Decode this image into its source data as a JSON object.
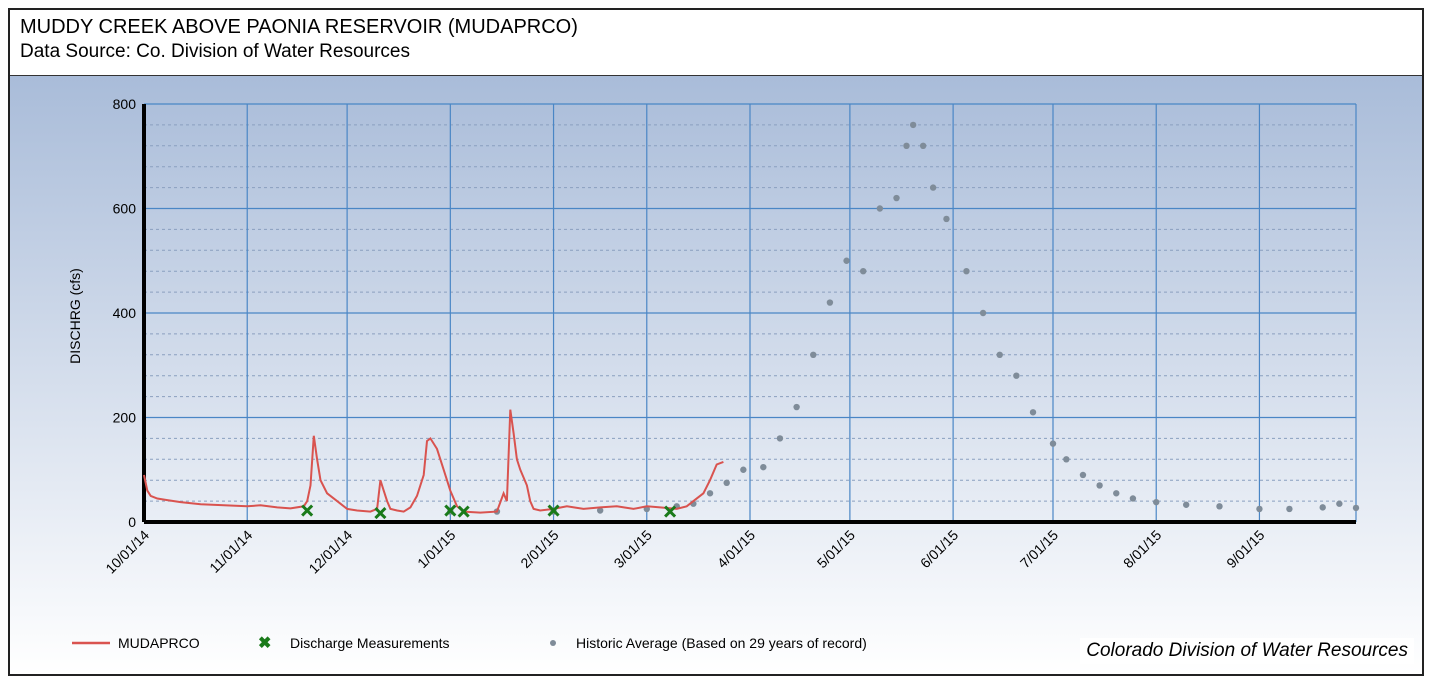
{
  "header": {
    "title": "MUDDY CREEK ABOVE PAONIA RESERVOIR (MUDAPRCO)",
    "subtitle": "Data Source: Co. Division of Water Resources"
  },
  "credit": "Colorado Division of Water Resources",
  "colors": {
    "gauge": "#d9534f",
    "measurement": "#1a7a1a",
    "historic": "#7f8c99",
    "grid": "#4a86c5",
    "background_top": "#a9bcd9",
    "background_bottom": "#ffffff"
  },
  "chart_data": {
    "type": "line",
    "ylabel": "DISCHRG (cfs)",
    "ylim": [
      0,
      800
    ],
    "yticks": [
      0,
      200,
      400,
      600,
      800
    ],
    "xlim": [
      "2014-10-01",
      "2015-09-30"
    ],
    "xticks": [
      {
        "date": "2014-10-01",
        "label": "10/01/14"
      },
      {
        "date": "2014-11-01",
        "label": "11/01/14"
      },
      {
        "date": "2014-12-01",
        "label": "12/01/14"
      },
      {
        "date": "2015-01-01",
        "label": "1/01/15"
      },
      {
        "date": "2015-02-01",
        "label": "2/01/15"
      },
      {
        "date": "2015-03-01",
        "label": "3/01/15"
      },
      {
        "date": "2015-04-01",
        "label": "4/01/15"
      },
      {
        "date": "2015-05-01",
        "label": "5/01/15"
      },
      {
        "date": "2015-06-01",
        "label": "6/01/15"
      },
      {
        "date": "2015-07-01",
        "label": "7/01/15"
      },
      {
        "date": "2015-08-01",
        "label": "8/01/15"
      },
      {
        "date": "2015-09-01",
        "label": "9/01/15"
      }
    ],
    "grid": true,
    "legend_position": "bottom",
    "series": [
      {
        "name": "MUDAPRCO",
        "style": "line",
        "x": [
          "2014-10-01",
          "2014-10-02",
          "2014-10-03",
          "2014-10-05",
          "2014-10-08",
          "2014-10-12",
          "2014-10-18",
          "2014-10-25",
          "2014-11-01",
          "2014-11-05",
          "2014-11-10",
          "2014-11-14",
          "2014-11-18",
          "2014-11-19",
          "2014-11-20",
          "2014-11-21",
          "2014-11-22",
          "2014-11-23",
          "2014-11-25",
          "2014-11-28",
          "2014-11-30",
          "2014-12-01",
          "2014-12-04",
          "2014-12-08",
          "2014-12-10",
          "2014-12-11",
          "2014-12-12",
          "2014-12-13",
          "2014-12-14",
          "2014-12-16",
          "2014-12-18",
          "2014-12-20",
          "2014-12-22",
          "2014-12-24",
          "2014-12-25",
          "2014-12-26",
          "2014-12-28",
          "2014-12-30",
          "2015-01-01",
          "2015-01-03",
          "2015-01-05",
          "2015-01-10",
          "2015-01-15",
          "2015-01-17",
          "2015-01-18",
          "2015-01-19",
          "2015-01-20",
          "2015-01-21",
          "2015-01-22",
          "2015-01-24",
          "2015-01-25",
          "2015-01-26",
          "2015-01-28",
          "2015-02-01",
          "2015-02-05",
          "2015-02-10",
          "2015-02-15",
          "2015-02-20",
          "2015-02-25",
          "2015-03-01",
          "2015-03-05",
          "2015-03-10",
          "2015-03-13",
          "2015-03-15",
          "2015-03-18",
          "2015-03-20",
          "2015-03-22",
          "2015-03-24"
        ],
        "values": [
          90,
          60,
          50,
          45,
          42,
          38,
          34,
          32,
          30,
          32,
          28,
          26,
          30,
          40,
          70,
          165,
          120,
          80,
          55,
          40,
          30,
          25,
          22,
          20,
          25,
          80,
          60,
          40,
          25,
          22,
          20,
          28,
          50,
          90,
          155,
          160,
          140,
          100,
          60,
          30,
          20,
          18,
          20,
          55,
          40,
          215,
          170,
          120,
          100,
          70,
          40,
          25,
          22,
          25,
          30,
          25,
          28,
          30,
          25,
          30,
          28,
          25,
          30,
          40,
          55,
          80,
          110,
          115
        ]
      },
      {
        "name": "Discharge Measurements",
        "style": "marker-x",
        "x": [
          "2014-11-19",
          "2014-12-11",
          "2015-01-01",
          "2015-01-05",
          "2015-02-01",
          "2015-03-08"
        ],
        "values": [
          22,
          17,
          22,
          20,
          22,
          20
        ]
      },
      {
        "name": "Historic Average (Based on 29 years of record)",
        "style": "marker-dot",
        "x": [
          "2015-01-01",
          "2015-01-15",
          "2015-02-01",
          "2015-02-15",
          "2015-03-01",
          "2015-03-10",
          "2015-03-15",
          "2015-03-20",
          "2015-03-25",
          "2015-03-30",
          "2015-04-05",
          "2015-04-10",
          "2015-04-15",
          "2015-04-20",
          "2015-04-25",
          "2015-04-30",
          "2015-05-05",
          "2015-05-10",
          "2015-05-15",
          "2015-05-18",
          "2015-05-20",
          "2015-05-23",
          "2015-05-26",
          "2015-05-30",
          "2015-06-05",
          "2015-06-10",
          "2015-06-15",
          "2015-06-20",
          "2015-06-25",
          "2015-07-01",
          "2015-07-05",
          "2015-07-10",
          "2015-07-15",
          "2015-07-20",
          "2015-07-25",
          "2015-08-01",
          "2015-08-10",
          "2015-08-20",
          "2015-09-01",
          "2015-09-10",
          "2015-09-20",
          "2015-09-25",
          "2015-09-30"
        ],
        "values": [
          20,
          20,
          20,
          22,
          25,
          30,
          35,
          55,
          75,
          100,
          105,
          160,
          220,
          320,
          420,
          500,
          480,
          600,
          620,
          720,
          760,
          720,
          640,
          580,
          480,
          400,
          320,
          280,
          210,
          150,
          120,
          90,
          70,
          55,
          45,
          38,
          33,
          30,
          25,
          25,
          28,
          35,
          27
        ]
      }
    ]
  }
}
